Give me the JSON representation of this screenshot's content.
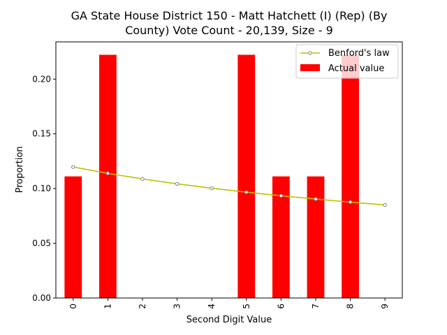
{
  "chart_data": {
    "type": "bar",
    "title_line1": "GA State House District 150 - Matt Hatchett (I) (Rep) (By",
    "title_line2": "County) Vote Count - 20,139, Size - 9",
    "xlabel": "Second Digit Value",
    "ylabel": "Proportion",
    "categories": [
      "0",
      "1",
      "2",
      "3",
      "4",
      "5",
      "6",
      "7",
      "8",
      "9"
    ],
    "ylim": [
      0,
      0.234
    ],
    "yticks": [
      0.0,
      0.05,
      0.1,
      0.15,
      0.2
    ],
    "ytick_labels": [
      "0.00",
      "0.05",
      "0.10",
      "0.15",
      "0.20"
    ],
    "grid": false,
    "legend_position": "top-right",
    "series": [
      {
        "name": "Actual value",
        "kind": "bar",
        "color": "#ff0000",
        "values": [
          0.1111,
          0.2222,
          0.0,
          0.0,
          0.0,
          0.2222,
          0.1111,
          0.1111,
          0.2222,
          0.0
        ]
      },
      {
        "name": "Benford's law",
        "kind": "line",
        "color": "#bfbf00",
        "marker_color": "#808080",
        "values": [
          0.1197,
          0.1139,
          0.1088,
          0.1043,
          0.1003,
          0.0967,
          0.0934,
          0.0904,
          0.0876,
          0.085
        ]
      }
    ]
  }
}
